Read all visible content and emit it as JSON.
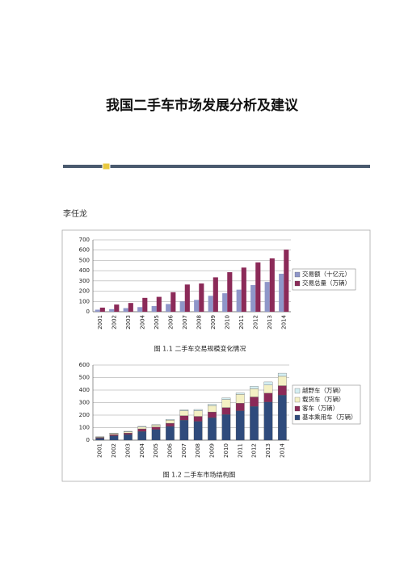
{
  "title": "我国二手车市场发展分析及建议",
  "author": "李任龙",
  "chart_data": [
    {
      "type": "bar",
      "stacked": false,
      "grid": true,
      "legend": "right",
      "caption": "图 1.1 二手车交易规模变化情况",
      "categories": [
        "2001",
        "2002",
        "2003",
        "2004",
        "2005",
        "2006",
        "2007",
        "2008",
        "2009",
        "2010",
        "2011",
        "2012",
        "2013",
        "2014"
      ],
      "ylim": [
        0,
        700
      ],
      "yticks": [
        0,
        100,
        200,
        300,
        400,
        500,
        600,
        700
      ],
      "series": [
        {
          "name": "交易额（十亿元）",
          "color": "#8f96c9",
          "values": [
            20,
            25,
            35,
            45,
            55,
            75,
            100,
            115,
            155,
            180,
            215,
            260,
            290,
            370
          ]
        },
        {
          "name": "交易总量（万辆）",
          "color": "#8b2a58",
          "values": [
            40,
            70,
            85,
            135,
            145,
            190,
            265,
            275,
            335,
            385,
            430,
            480,
            520,
            605
          ]
        }
      ]
    },
    {
      "type": "bar",
      "stacked": true,
      "grid": true,
      "legend": "right",
      "caption": "图 1.2 二手车市场结构图",
      "categories": [
        "2001",
        "2002",
        "2003",
        "2004",
        "2005",
        "2006",
        "2007",
        "2008",
        "2009",
        "2010",
        "2011",
        "2012",
        "2013",
        "2014"
      ],
      "ylim": [
        0,
        600
      ],
      "yticks": [
        0,
        100,
        200,
        300,
        400,
        500,
        600
      ],
      "series": [
        {
          "name": "基本乘用车（万辆）",
          "color": "#2f4b7c",
          "values": [
            15,
            35,
            45,
            70,
            85,
            110,
            160,
            150,
            180,
            205,
            235,
            270,
            305,
            360
          ]
        },
        {
          "name": "客车（万辆）",
          "color": "#8b2a58",
          "values": [
            5,
            10,
            12,
            20,
            20,
            25,
            35,
            40,
            45,
            55,
            60,
            75,
            70,
            75
          ]
        },
        {
          "name": "载货车（万辆）",
          "color": "#f4f0c4",
          "values": [
            5,
            8,
            10,
            15,
            15,
            25,
            40,
            45,
            50,
            65,
            70,
            65,
            65,
            75
          ]
        },
        {
          "name": "越野车（万辆）",
          "color": "#d4eef2",
          "values": [
            2,
            3,
            4,
            5,
            5,
            6,
            7,
            10,
            12,
            12,
            12,
            20,
            25,
            25
          ]
        }
      ]
    }
  ]
}
